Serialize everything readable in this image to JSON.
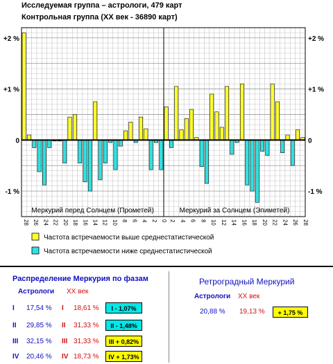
{
  "header": {
    "line1": "Исследуемая группа – астрологи, 479 карт",
    "line2": "Контрольная группа (XX век - 36890 карт)"
  },
  "colors": {
    "above": "#ffff33",
    "below": "#33e0e0",
    "grid": "#b8b8b8"
  },
  "chart_data": {
    "type": "bar",
    "ylim": [
      -1.5,
      2.2
    ],
    "yticks": [
      "+2 %",
      "+1 %",
      "0",
      "-1 %"
    ],
    "ytick_values": [
      2,
      1,
      0,
      -1
    ],
    "x_left_ticks": [
      "28",
      "26",
      "24",
      "22",
      "20",
      "18",
      "16",
      "14",
      "12",
      "10",
      "8",
      "6",
      "4",
      "2",
      "0"
    ],
    "x_right_ticks": [
      "2",
      "4",
      "6",
      "8",
      "10",
      "12",
      "14",
      "16",
      "18",
      "20",
      "22",
      "24",
      "26",
      "28"
    ],
    "section_left": "Меркурий перед Солнцем (Прометей)",
    "section_right": "Меркурий за Солнцем (Эпиметей)",
    "left_values": [
      2.1,
      0.1,
      -0.15,
      -0.62,
      -0.88,
      -0.15,
      -0.02,
      -0.02,
      -0.45,
      0.45,
      0.5,
      -0.45,
      -0.82,
      -1.0,
      0.75,
      -0.78,
      -0.45,
      -0.05,
      -0.58,
      -0.12,
      0.18,
      0.35,
      -0.05,
      0.45,
      0.22,
      -0.58,
      -0.05,
      -0.58
    ],
    "right_values": [
      0.65,
      -0.15,
      1.05,
      0.2,
      0.42,
      0.6,
      0.05,
      -0.52,
      -0.85,
      0.9,
      0.55,
      0.25,
      1.05,
      -0.28,
      -0.05,
      1.1,
      -0.88,
      -1.0,
      -1.22,
      -0.22,
      -0.3,
      1.1,
      0.75,
      -0.25,
      0.1,
      -0.5,
      0.2,
      0.05
    ]
  },
  "legend": {
    "above": "Частота встречаемости выше среднестатистической",
    "below": "Частота встречаемости ниже среднестатистической"
  },
  "phases": {
    "title": "Распределение Меркурия по фазам",
    "col_astro": "Астрологи",
    "col_xx": "XX век",
    "rows": [
      {
        "num": "I",
        "astro": "17,54 %",
        "xx": "18,61 %",
        "diff": "I   - 1,07%",
        "sign": "below"
      },
      {
        "num": "II",
        "astro": "29,85 %",
        "xx": "31,33 %",
        "diff": "II  - 1,48%",
        "sign": "below"
      },
      {
        "num": "III",
        "astro": "32,15 %",
        "xx": "31,33 %",
        "diff": "III + 0,82%",
        "sign": "above"
      },
      {
        "num": "IV",
        "astro": "20,46 %",
        "xx": "18,73 %",
        "diff": "IV + 1,73%",
        "sign": "above"
      }
    ]
  },
  "retro": {
    "title": "Ретроградный Меркурий",
    "col_astro": "Астрологи",
    "col_xx": "XX век",
    "astro": "20,88 %",
    "xx": "19,13 %",
    "diff": "+ 1,75 %"
  }
}
